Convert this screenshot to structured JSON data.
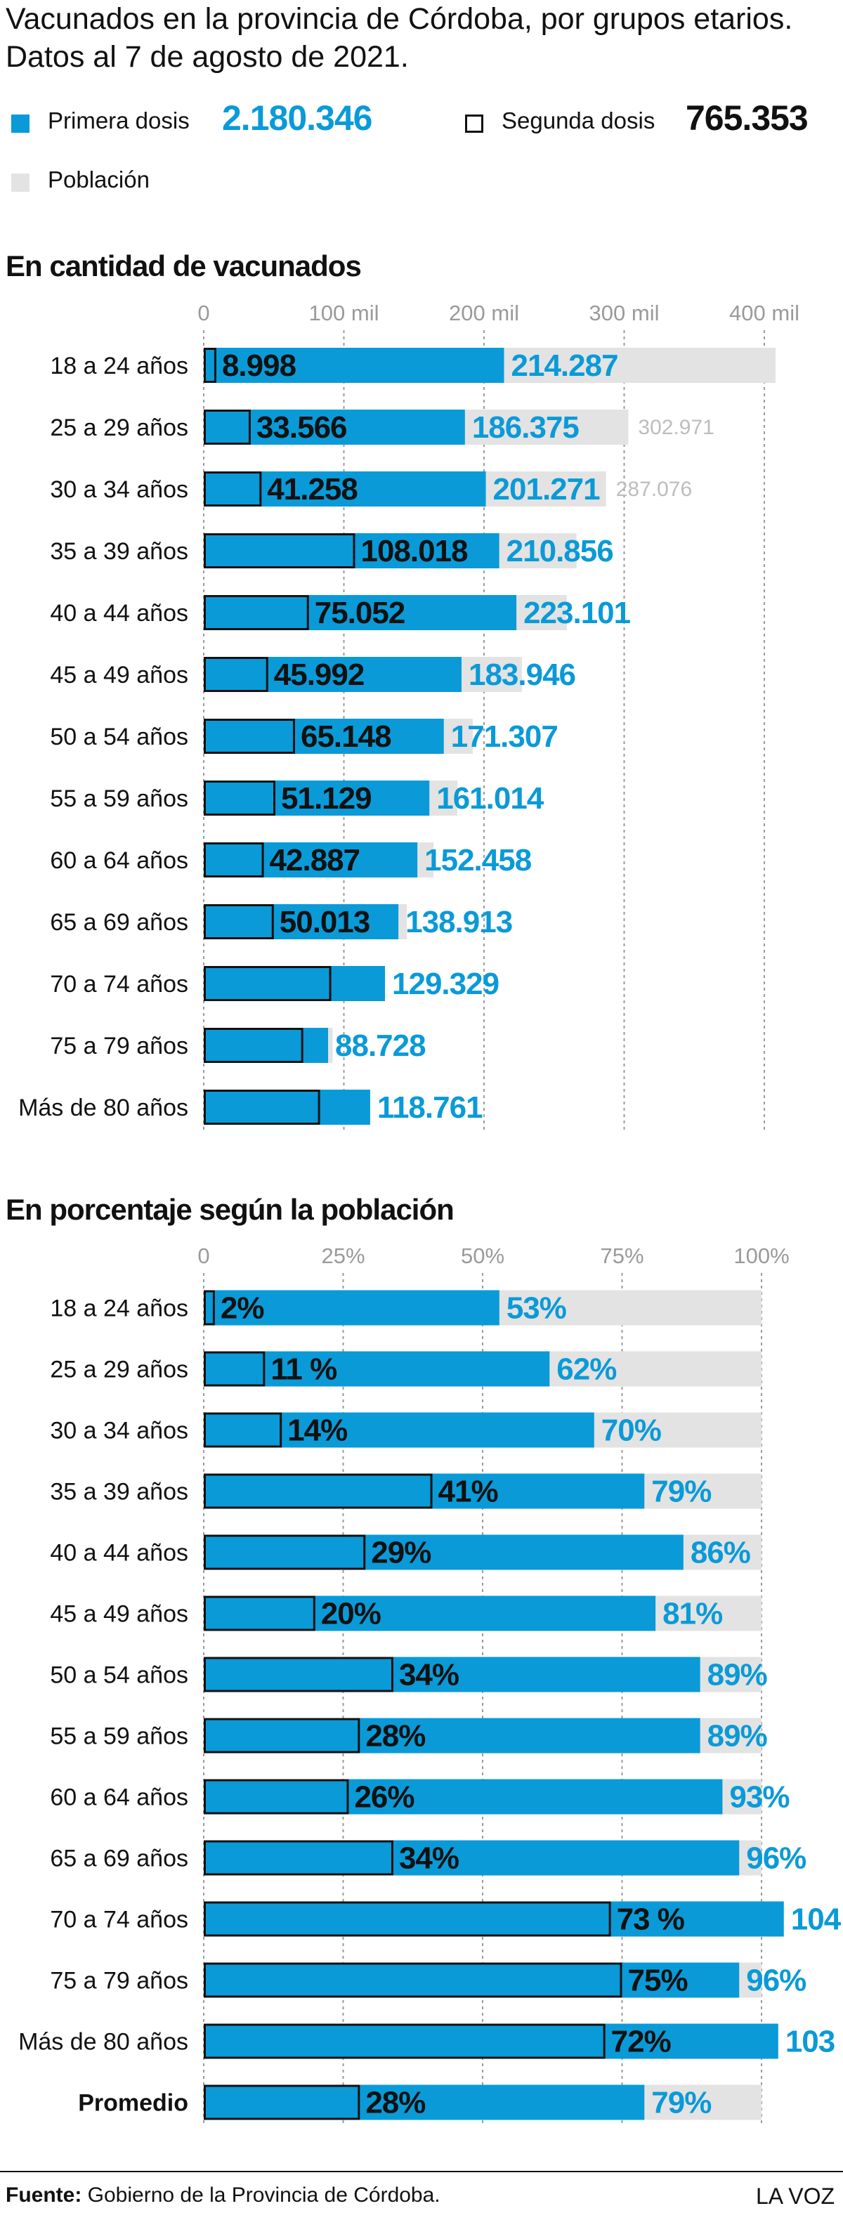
{
  "title": "Vacunados en la provincia de Córdoba, por grupos etarios. Datos al 7 de agosto de 2021.",
  "legend": {
    "first": {
      "label": "Primera dosis",
      "total": "2.180.346"
    },
    "second": {
      "label": "Segunda dosis",
      "total": "765.353"
    },
    "population": {
      "label": "Población"
    }
  },
  "colors": {
    "first": "#0a9ad8",
    "second_border": "#111111",
    "population": "#e3e3e3",
    "grid": "#9a9a9a",
    "text": "#111111"
  },
  "chart_data": [
    {
      "type": "bar",
      "title": "En cantidad de vacunados",
      "orientation": "horizontal",
      "xlim": [
        0,
        400000
      ],
      "tick_labels": [
        "0",
        "100 mil",
        "200 mil",
        "300 mil",
        "400 mil"
      ],
      "tick_values": [
        0,
        100000,
        200000,
        300000,
        400000
      ],
      "grid": true,
      "categories": [
        "18 a 24 años",
        "25 a 29 años",
        "30 a 34 años",
        "35 a 39 años",
        "40 a 44 años",
        "45 a 49 años",
        "50 a 54 años",
        "55 a 59 años",
        "60 a 64 años",
        "65 a 69 años",
        "70 a 74 años",
        "75 a 79  años",
        "Más de 80 años"
      ],
      "series": [
        {
          "name": "Población",
          "values": [
            408000,
            302971,
            287076,
            266000,
            259000,
            227000,
            192000,
            181000,
            164000,
            145000,
            124000,
            92000,
            115000
          ],
          "labels": [
            "",
            "302.971",
            "287.076",
            "",
            "",
            "",
            "",
            "",
            "",
            "",
            "",
            "",
            ""
          ]
        },
        {
          "name": "Primera dosis",
          "values": [
            214287,
            186375,
            201271,
            210856,
            223101,
            183946,
            171307,
            161014,
            152458,
            138913,
            129329,
            88728,
            118761
          ],
          "labels": [
            "214.287",
            "186.375",
            "201.271",
            "210.856",
            "223.101",
            "183.946",
            "171.307",
            "161.014",
            "152.458",
            "138.913",
            "129.329",
            "88.728",
            "118.761"
          ]
        },
        {
          "name": "Segunda dosis",
          "values": [
            8998,
            33566,
            41258,
            108018,
            75052,
            45992,
            65148,
            51129,
            42887,
            50013,
            91000,
            71000,
            83000
          ],
          "labels": [
            "8.998",
            "33.566",
            "41.258",
            "108.018",
            "75.052",
            "45.992",
            "65.148",
            "51.129",
            "42.887",
            "50.013",
            "",
            "",
            ""
          ]
        }
      ]
    },
    {
      "type": "bar",
      "title": "En porcentaje según la población",
      "orientation": "horizontal",
      "xlim": [
        0,
        100
      ],
      "tick_labels": [
        "0",
        "25%",
        "50%",
        "75%",
        "100%"
      ],
      "tick_values": [
        0,
        25,
        50,
        75,
        100
      ],
      "grid": true,
      "categories": [
        "18 a 24 años",
        "25 a 29 años",
        "30 a 34 años",
        "35 a 39 años",
        "40 a 44 años",
        "45 a 49 años",
        "50 a 54 años",
        "55 a 59 años",
        "60 a 64 años",
        "65 a 69 años",
        "70 a 74 años",
        "75 a 79  años",
        "Más de 80 años",
        "Promedio"
      ],
      "series": [
        {
          "name": "Población",
          "values": [
            100,
            100,
            100,
            100,
            100,
            100,
            100,
            100,
            100,
            100,
            100,
            100,
            100,
            100
          ]
        },
        {
          "name": "Primera dosis",
          "values": [
            53,
            62,
            70,
            79,
            86,
            81,
            89,
            89,
            93,
            96,
            104,
            96,
            103,
            79
          ],
          "labels": [
            "53%",
            "62%",
            "70%",
            "79%",
            "86%",
            "81%",
            "89%",
            "89%",
            "93%",
            "96%",
            "104",
            "96%",
            "103",
            "79%"
          ]
        },
        {
          "name": "Segunda dosis",
          "values": [
            2,
            11,
            14,
            41,
            29,
            20,
            34,
            28,
            26,
            34,
            73,
            75,
            72,
            28
          ],
          "labels": [
            "2%",
            "11 %",
            "14%",
            "41%",
            "29%",
            "20%",
            "34%",
            "28%",
            "26%",
            "34%",
            "73 %",
            "75%",
            "72%",
            "28%"
          ]
        }
      ]
    }
  ],
  "footer": {
    "source_label": "Fuente:",
    "source_text": " Gobierno de la Provincia de Córdoba.",
    "brand": "LA VOZ"
  }
}
